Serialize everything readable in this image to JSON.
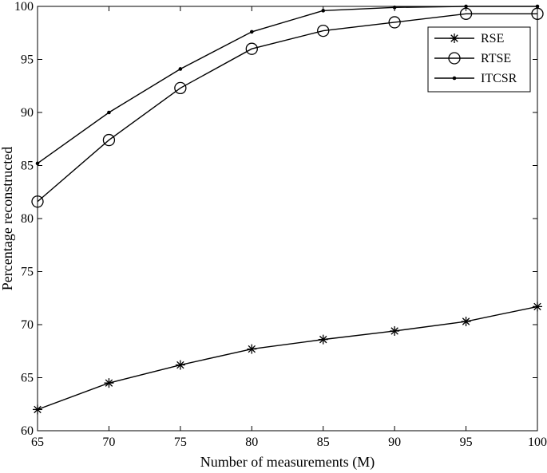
{
  "chart_data": {
    "type": "line",
    "title": "",
    "xlabel": "Number of measurements (M)",
    "ylabel": "Percentage reconstructed",
    "x": [
      65,
      70,
      75,
      80,
      85,
      90,
      95,
      100
    ],
    "xlim": [
      65,
      100
    ],
    "ylim": [
      60,
      100
    ],
    "xticks": [
      65,
      70,
      75,
      80,
      85,
      90,
      95,
      100
    ],
    "yticks": [
      60,
      65,
      70,
      75,
      80,
      85,
      90,
      95,
      100
    ],
    "grid": false,
    "legend_position": "top-right",
    "series": [
      {
        "name": "RSE",
        "marker": "asterisk",
        "color": "#000000",
        "values": [
          62.0,
          64.5,
          66.2,
          67.7,
          68.6,
          69.4,
          70.3,
          71.7
        ]
      },
      {
        "name": "RTSE",
        "marker": "circle",
        "color": "#000000",
        "values": [
          81.6,
          87.4,
          92.3,
          96.0,
          97.7,
          98.5,
          99.3,
          99.3
        ]
      },
      {
        "name": "ITCSR",
        "marker": "point",
        "color": "#000000",
        "values": [
          85.2,
          90.0,
          94.1,
          97.6,
          99.6,
          99.9,
          100.0,
          100.0
        ]
      }
    ]
  }
}
